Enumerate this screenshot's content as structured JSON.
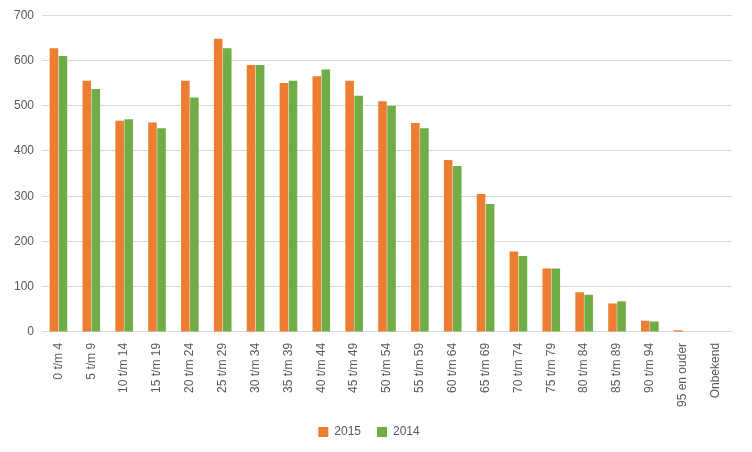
{
  "chart_data": {
    "type": "bar",
    "categories": [
      "0 t/m 4",
      "5 t/m 9",
      "10 t/m 14",
      "15 t/m 19",
      "20 t/m 24",
      "25 t/m 29",
      "30 t/m 34",
      "35 t/m 39",
      "40 t/m 44",
      "45 t/m 49",
      "50 t/m 54",
      "55 t/m 59",
      "60 t/m 64",
      "65 t/m 69",
      "70 t/m 74",
      "75 t/m 79",
      "80 t/m 84",
      "85 t/m 89",
      "90 t/m 94",
      "95 en ouder",
      "Onbekend"
    ],
    "series": [
      {
        "name": "2015",
        "color": "#ed7d31",
        "values": [
          627,
          555,
          467,
          463,
          555,
          648,
          590,
          550,
          565,
          555,
          510,
          462,
          380,
          305,
          178,
          140,
          88,
          63,
          25,
          4,
          0
        ]
      },
      {
        "name": "2014",
        "color": "#70ad47",
        "values": [
          610,
          537,
          470,
          450,
          518,
          627,
          590,
          555,
          580,
          522,
          500,
          450,
          367,
          283,
          168,
          140,
          82,
          68,
          23,
          1,
          0
        ]
      }
    ],
    "ylim": [
      0,
      700
    ],
    "yticks": [
      0,
      100,
      200,
      300,
      400,
      500,
      600,
      700
    ],
    "grid": true,
    "legend": "bottom"
  }
}
